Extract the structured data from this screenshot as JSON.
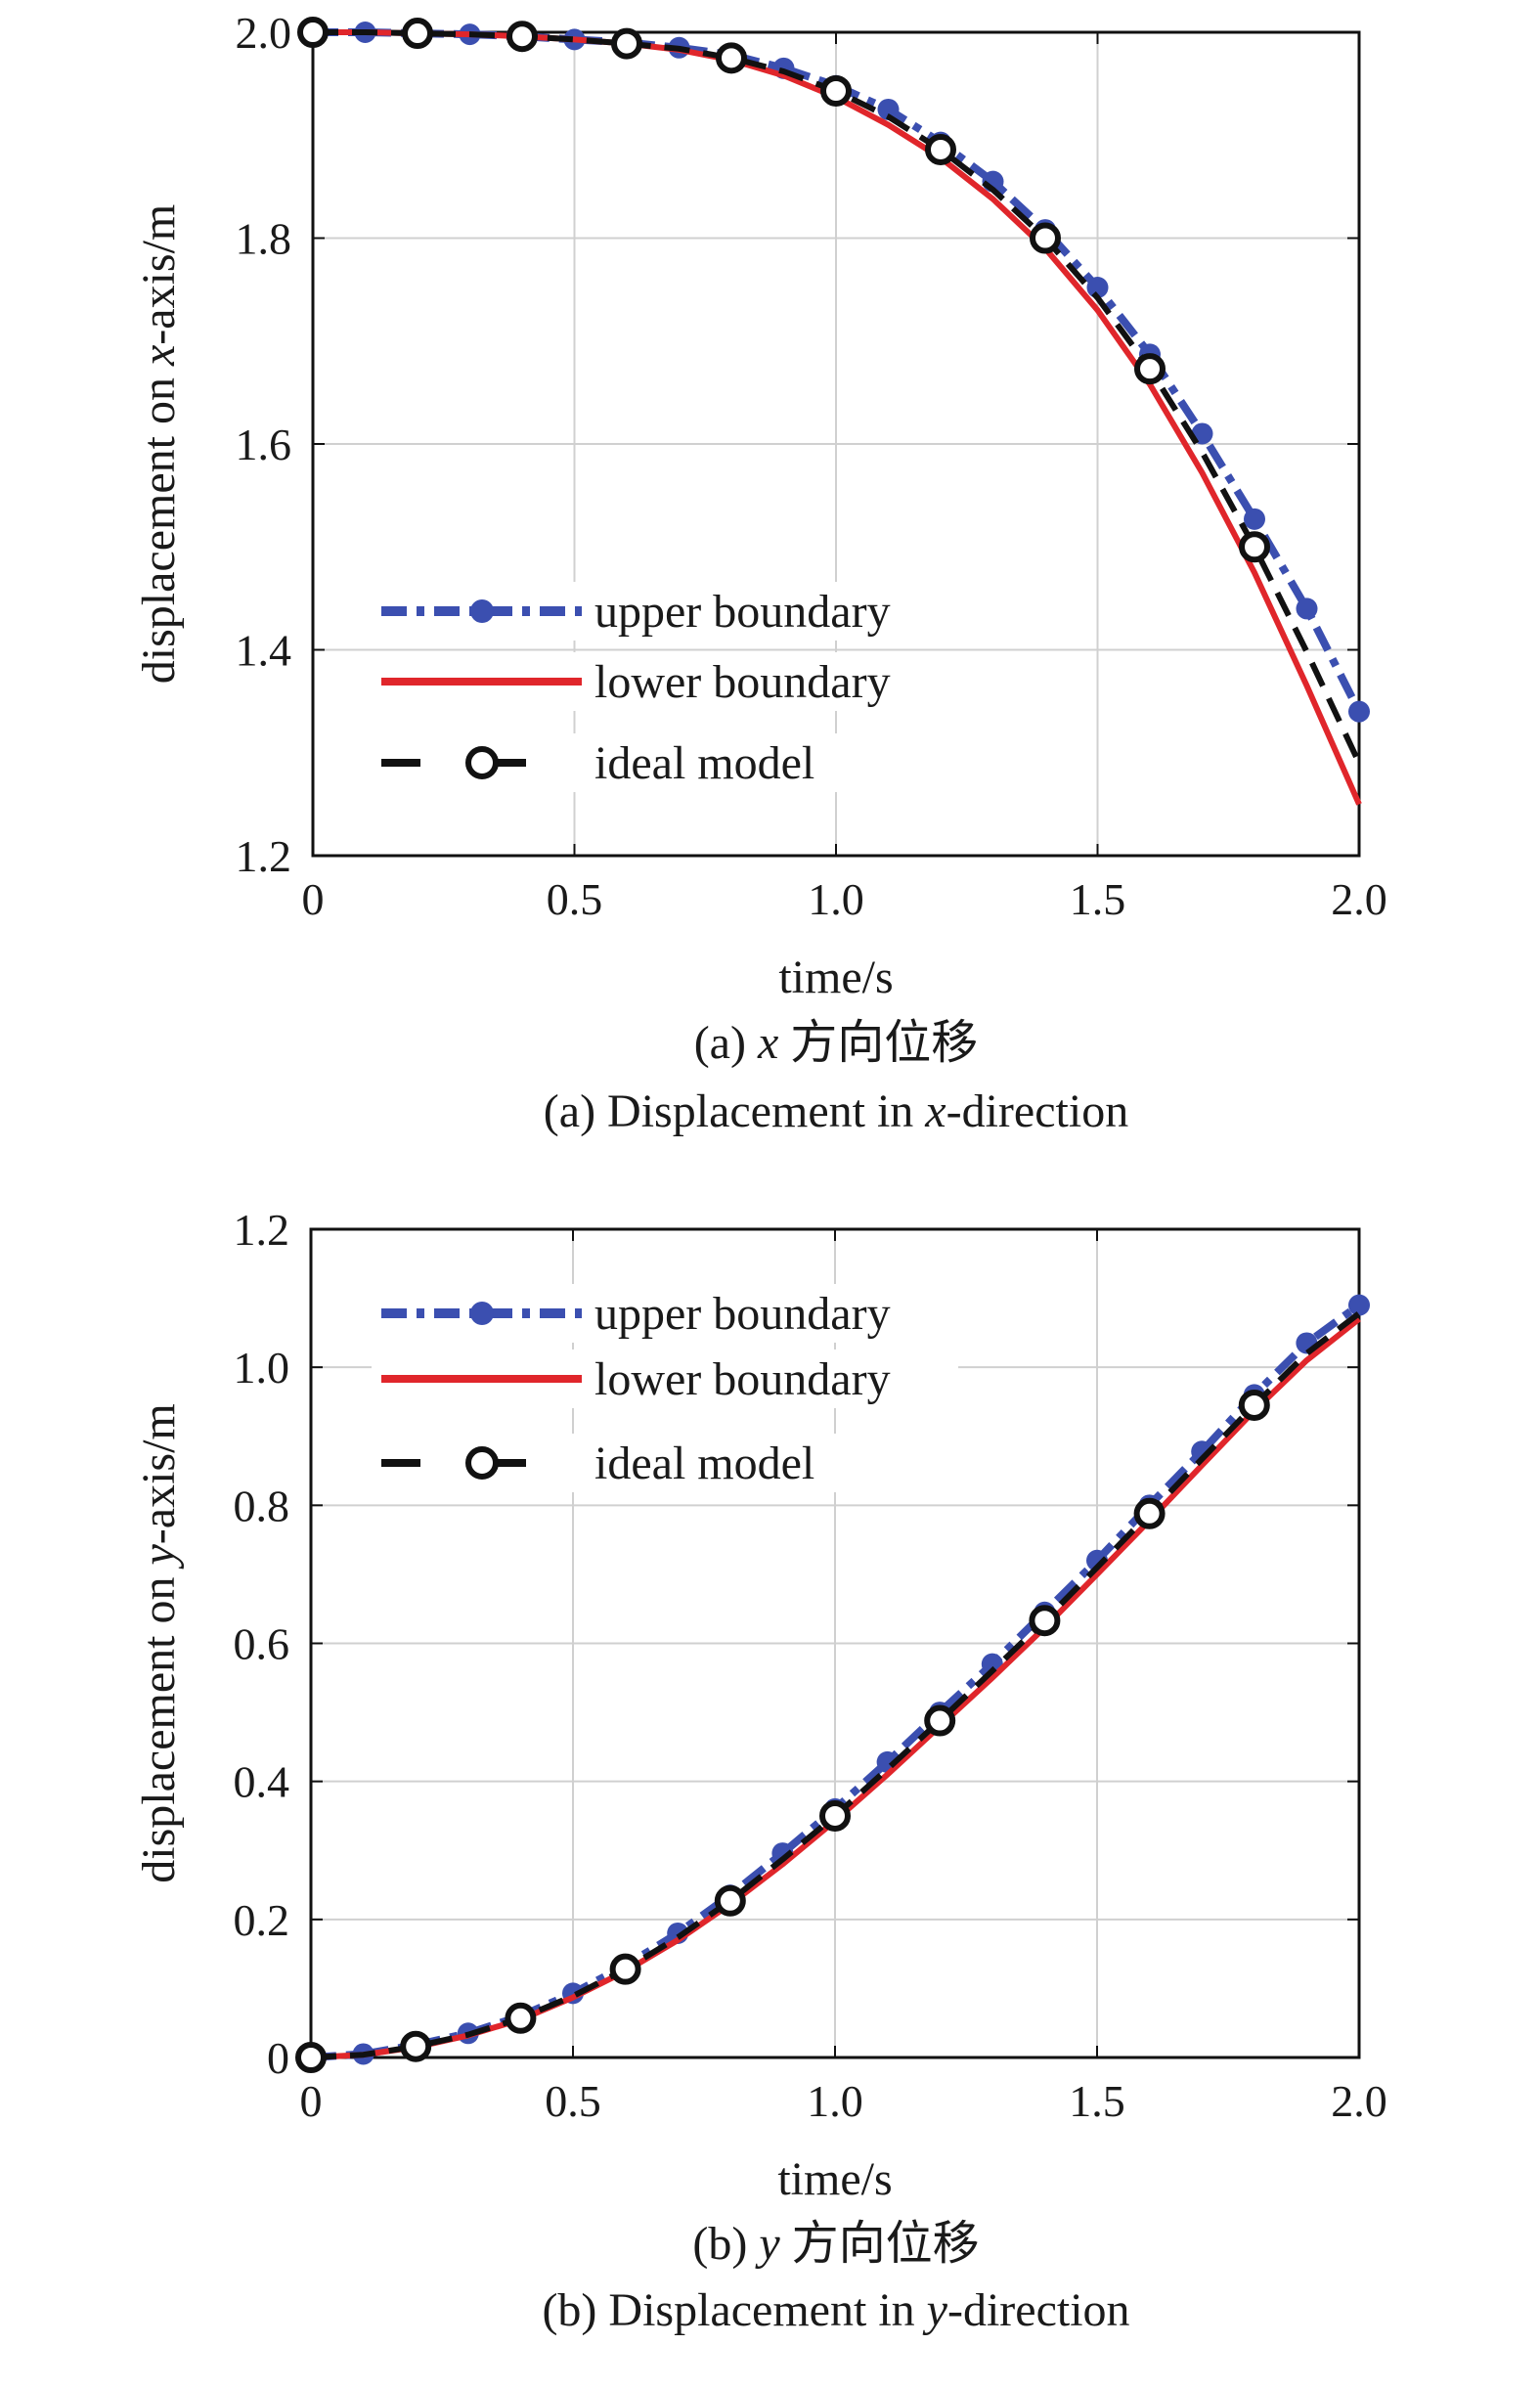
{
  "colors": {
    "upper": "#3b4fb0",
    "lower": "#e0262b",
    "ideal": "#111111",
    "grid": "#d0d0d0",
    "axis": "#111111"
  },
  "chart_data": [
    {
      "type": "line",
      "xlabel": "time/s",
      "ylabel_prefix": "displacement on ",
      "ylabel_var": "x",
      "ylabel_suffix": "-axis/m",
      "caption_cn_prefix": "(a) ",
      "caption_cn_var": "x",
      "caption_cn_text": " 方向位移",
      "caption_en_prefix": "(a) Displacement in ",
      "caption_en_var": "x",
      "caption_en_suffix": "-direction",
      "xlim": [
        0,
        2.0
      ],
      "ylim": [
        1.2,
        2.0
      ],
      "xticks": [
        "0",
        "0.5",
        "1.0",
        "1.5",
        "2.0"
      ],
      "yticks": [
        "1.2",
        "1.4",
        "1.6",
        "1.8",
        "2.0"
      ],
      "grid": true,
      "legend_position": "lower-left",
      "series": [
        {
          "name": "upper boundary",
          "x": [
            0,
            0.1,
            0.2,
            0.3,
            0.4,
            0.5,
            0.6,
            0.7,
            0.8,
            0.9,
            1.0,
            1.1,
            1.2,
            1.3,
            1.4,
            1.5,
            1.6,
            1.7,
            1.8,
            1.9,
            2.0
          ],
          "y": [
            2.0,
            2.0,
            1.999,
            1.998,
            1.996,
            1.993,
            1.99,
            1.985,
            1.978,
            1.965,
            1.948,
            1.925,
            1.893,
            1.855,
            1.808,
            1.752,
            1.687,
            1.61,
            1.527,
            1.44,
            1.34
          ]
        },
        {
          "name": "lower boundary",
          "x": [
            0,
            0.1,
            0.2,
            0.3,
            0.4,
            0.5,
            0.6,
            0.7,
            0.8,
            0.9,
            1.0,
            1.1,
            1.2,
            1.3,
            1.4,
            1.5,
            1.6,
            1.7,
            1.8,
            1.9,
            2.0
          ],
          "y": [
            2.0,
            2.0,
            1.999,
            1.998,
            1.996,
            1.993,
            1.989,
            1.983,
            1.973,
            1.958,
            1.937,
            1.91,
            1.878,
            1.838,
            1.79,
            1.73,
            1.658,
            1.572,
            1.475,
            1.365,
            1.25
          ]
        },
        {
          "name": "ideal model",
          "x": [
            0,
            0.1,
            0.2,
            0.3,
            0.4,
            0.5,
            0.6,
            0.7,
            0.8,
            0.9,
            1.0,
            1.1,
            1.2,
            1.3,
            1.4,
            1.5,
            1.6,
            1.7,
            1.8,
            1.9,
            2.0
          ],
          "y": [
            2.0,
            2.0,
            1.999,
            1.998,
            1.996,
            1.993,
            1.989,
            1.984,
            1.975,
            1.962,
            1.943,
            1.918,
            1.886,
            1.847,
            1.8,
            1.742,
            1.673,
            1.592,
            1.5,
            1.398,
            1.29
          ]
        }
      ]
    },
    {
      "type": "line",
      "xlabel": "time/s",
      "ylabel_prefix": "displacement on ",
      "ylabel_var": "y",
      "ylabel_suffix": "-axis/m",
      "caption_cn_prefix": "(b) ",
      "caption_cn_var": "y",
      "caption_cn_text": " 方向位移",
      "caption_en_prefix": "(b) Displacement in ",
      "caption_en_var": "y",
      "caption_en_suffix": "-direction",
      "xlim": [
        0,
        2.0
      ],
      "ylim": [
        0,
        1.2
      ],
      "xticks": [
        "0",
        "0.5",
        "1.0",
        "1.5",
        "2.0"
      ],
      "yticks": [
        "0",
        "0.2",
        "0.4",
        "0.6",
        "0.8",
        "1.0",
        "1.2"
      ],
      "grid": true,
      "legend_position": "top-left",
      "series": [
        {
          "name": "upper boundary",
          "x": [
            0,
            0.1,
            0.2,
            0.3,
            0.4,
            0.5,
            0.6,
            0.7,
            0.8,
            0.9,
            1.0,
            1.1,
            1.2,
            1.3,
            1.4,
            1.5,
            1.6,
            1.7,
            1.8,
            1.9,
            2.0
          ],
          "y": [
            0,
            0.005,
            0.018,
            0.035,
            0.06,
            0.093,
            0.133,
            0.18,
            0.235,
            0.296,
            0.36,
            0.428,
            0.5,
            0.57,
            0.645,
            0.72,
            0.8,
            0.878,
            0.96,
            1.035,
            1.09
          ]
        },
        {
          "name": "lower boundary",
          "x": [
            0,
            0.1,
            0.2,
            0.3,
            0.4,
            0.5,
            0.6,
            0.7,
            0.8,
            0.9,
            1.0,
            1.1,
            1.2,
            1.3,
            1.4,
            1.5,
            1.6,
            1.7,
            1.8,
            1.9,
            2.0
          ],
          "y": [
            0,
            0.004,
            0.015,
            0.032,
            0.055,
            0.087,
            0.125,
            0.17,
            0.222,
            0.28,
            0.343,
            0.41,
            0.48,
            0.55,
            0.623,
            0.7,
            0.778,
            0.858,
            0.937,
            1.01,
            1.07
          ]
        },
        {
          "name": "ideal model",
          "x": [
            0,
            0.1,
            0.2,
            0.3,
            0.4,
            0.5,
            0.6,
            0.7,
            0.8,
            0.9,
            1.0,
            1.1,
            1.2,
            1.3,
            1.4,
            1.5,
            1.6,
            1.7,
            1.8,
            1.9,
            2.0
          ],
          "y": [
            0,
            0.004,
            0.016,
            0.033,
            0.057,
            0.089,
            0.128,
            0.174,
            0.227,
            0.287,
            0.35,
            0.418,
            0.488,
            0.56,
            0.633,
            0.71,
            0.788,
            0.867,
            0.945,
            1.02,
            1.078
          ]
        }
      ]
    }
  ]
}
